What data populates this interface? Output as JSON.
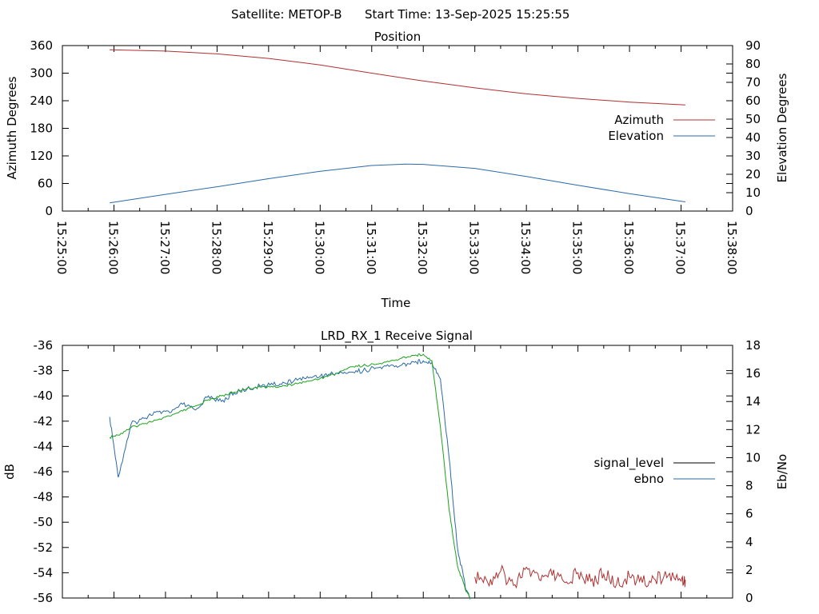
{
  "header": {
    "satellite_label": "Satellite: METOP-B",
    "start_time_label": "Start Time: 13-Sep-2025 15:25:55"
  },
  "chart_data": [
    {
      "type": "line",
      "title": "Position",
      "xlabel": "Time",
      "ylabel": "Azimuth Degrees",
      "y2label": "Elevation Degrees",
      "xlim": [
        "15:25:00",
        "15:38:00"
      ],
      "ylim": [
        0,
        360
      ],
      "y2lim": [
        0,
        90
      ],
      "x_ticks": [
        "15:25:00",
        "15:26:00",
        "15:27:00",
        "15:28:00",
        "15:29:00",
        "15:30:00",
        "15:31:00",
        "15:32:00",
        "15:33:00",
        "15:34:00",
        "15:35:00",
        "15:36:00",
        "15:37:00",
        "15:38:00"
      ],
      "y_ticks": [
        "0",
        "60",
        "120",
        "180",
        "240",
        "300",
        "360"
      ],
      "y2_ticks": [
        "0",
        "10",
        "20",
        "30",
        "40",
        "50",
        "60",
        "70",
        "80",
        "90"
      ],
      "legend_position": "right",
      "series": [
        {
          "name": "Azimuth",
          "axis": "y",
          "color": "#b03030",
          "x": [
            "15:25:55",
            "15:27:00",
            "15:28:00",
            "15:29:00",
            "15:30:00",
            "15:31:00",
            "15:32:00",
            "15:33:00",
            "15:34:00",
            "15:35:00",
            "15:36:00",
            "15:37:05"
          ],
          "values": [
            351,
            348,
            342,
            332,
            318,
            300,
            283,
            268,
            255,
            245,
            237,
            231
          ]
        },
        {
          "name": "Elevation",
          "axis": "y2",
          "color": "#2a6aa8",
          "x": [
            "15:25:55",
            "15:27:00",
            "15:28:00",
            "15:29:00",
            "15:30:00",
            "15:31:00",
            "15:31:40",
            "15:32:00",
            "15:33:00",
            "15:34:00",
            "15:35:00",
            "15:36:00",
            "15:37:05"
          ],
          "values": [
            4.5,
            9.1,
            13.2,
            17.6,
            21.6,
            24.8,
            25.5,
            25.4,
            23.2,
            18.8,
            14,
            9.5,
            5
          ]
        }
      ]
    },
    {
      "type": "line",
      "title": "LRD_RX_1 Receive Signal",
      "ylabel": "dB",
      "y2label": "Eb/No",
      "xlim": [
        "15:25:00",
        "15:38:00"
      ],
      "ylim": [
        -56,
        -36
      ],
      "y2lim": [
        0,
        18
      ],
      "y_ticks": [
        "-56",
        "-54",
        "-52",
        "-50",
        "-48",
        "-46",
        "-44",
        "-42",
        "-40",
        "-38",
        "-36"
      ],
      "y2_ticks": [
        "0",
        "2",
        "4",
        "6",
        "8",
        "10",
        "12",
        "14",
        "16",
        "18"
      ],
      "legend_position": "right",
      "series": [
        {
          "name": "signal_level",
          "axis": "y",
          "color": "#000000",
          "x": [],
          "values": []
        },
        {
          "name": "ebno",
          "axis": "y2",
          "color": "#2a6aa8",
          "x": [
            "15:25:55",
            "15:26:05",
            "15:26:20",
            "15:26:35",
            "15:26:50",
            "15:27:05",
            "15:27:20",
            "15:27:35",
            "15:27:50",
            "15:28:05",
            "15:28:20",
            "15:28:35",
            "15:28:50",
            "15:29:05",
            "15:29:20",
            "15:29:35",
            "15:29:50",
            "15:30:05",
            "15:30:20",
            "15:30:35",
            "15:30:50",
            "15:31:05",
            "15:31:20",
            "15:31:35",
            "15:31:50",
            "15:32:00",
            "15:32:10",
            "15:32:20",
            "15:32:30",
            "15:32:40",
            "15:32:50",
            "15:32:55"
          ],
          "values": [
            12.9,
            8.6,
            12.4,
            12.8,
            13.3,
            13.2,
            13.8,
            13.4,
            14.4,
            14,
            14.6,
            14.9,
            15.1,
            15.2,
            15.3,
            15.6,
            15.7,
            15.9,
            16,
            16.1,
            16.2,
            16.4,
            16.5,
            16.6,
            16.8,
            16.9,
            16.8,
            15.6,
            10,
            3.5,
            0.5,
            0
          ]
        },
        {
          "name": "",
          "axis": "y",
          "color": "#1aa21a",
          "x": [
            "15:25:55",
            "15:26:05",
            "15:26:20",
            "15:26:35",
            "15:26:50",
            "15:27:05",
            "15:27:20",
            "15:27:35",
            "15:27:50",
            "15:28:05",
            "15:28:20",
            "15:28:35",
            "15:28:50",
            "15:29:05",
            "15:29:20",
            "15:29:35",
            "15:29:50",
            "15:30:05",
            "15:30:20",
            "15:30:35",
            "15:30:50",
            "15:31:05",
            "15:31:20",
            "15:31:35",
            "15:31:50",
            "15:32:00",
            "15:32:10",
            "15:32:20",
            "15:32:30",
            "15:32:40",
            "15:32:50",
            "15:32:55"
          ],
          "values": [
            -43.3,
            -43.1,
            -42.5,
            -42.2,
            -41.9,
            -41.6,
            -41.2,
            -40.8,
            -40.3,
            -40,
            -39.7,
            -39.4,
            -39.3,
            -39.3,
            -39.2,
            -39,
            -38.8,
            -38.5,
            -38.2,
            -37.7,
            -37.6,
            -37.5,
            -37.3,
            -37,
            -36.8,
            -36.7,
            -37.2,
            -42.5,
            -49,
            -53.5,
            -55.5,
            -56
          ]
        },
        {
          "name": "",
          "axis": "y2",
          "color": "#b03030",
          "x": [
            "15:33:00",
            "15:33:15",
            "15:33:30",
            "15:33:45",
            "15:34:00",
            "15:34:15",
            "15:34:30",
            "15:34:45",
            "15:35:00",
            "15:35:15",
            "15:35:30",
            "15:35:45",
            "15:36:00",
            "15:36:15",
            "15:36:30",
            "15:36:45",
            "15:37:00",
            "15:37:05"
          ],
          "values": [
            1.5,
            1.1,
            1.9,
            0.9,
            2.2,
            1.3,
            1.6,
            1.1,
            1.8,
            1.2,
            1.7,
            1.0,
            1.5,
            1.1,
            1.3,
            1.6,
            1.2,
            1.3
          ]
        }
      ]
    }
  ]
}
